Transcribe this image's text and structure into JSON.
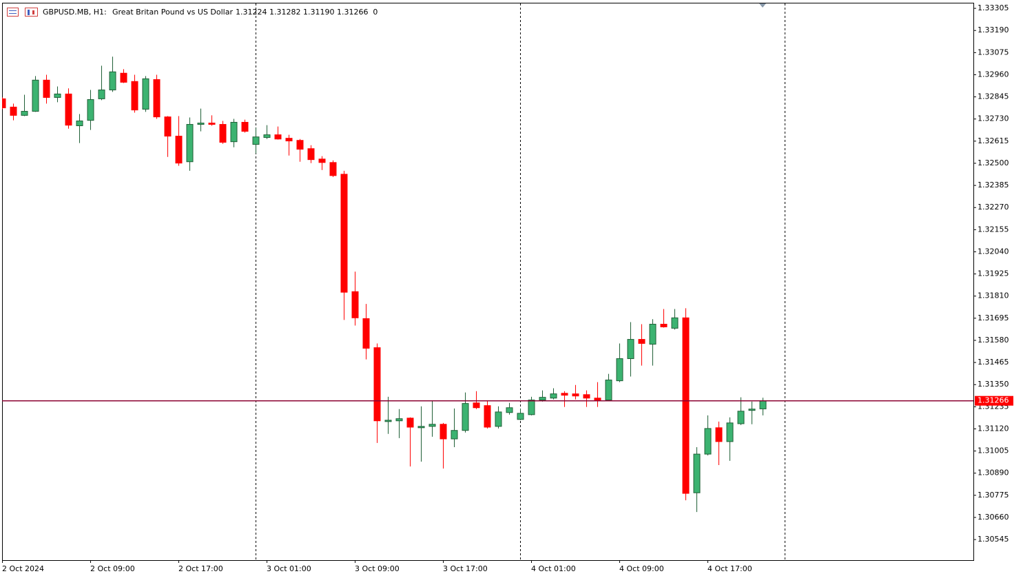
{
  "chart_data": {
    "type": "candlestick",
    "header": {
      "symbol": "GBPUSD.MB, H1:",
      "description": "Great Britan Pound vs US Dollar",
      "quote": "1.31224 1.31282 1.31190 1.31266  0"
    },
    "categories": [
      "2 Oct 2024",
      null,
      null,
      null,
      null,
      null,
      null,
      null,
      "2 Oct 09:00",
      null,
      null,
      null,
      null,
      null,
      null,
      null,
      "2 Oct 17:00",
      null,
      null,
      null,
      null,
      null,
      null,
      null,
      "3 Oct 01:00",
      null,
      null,
      null,
      null,
      null,
      null,
      null,
      "3 Oct 09:00",
      null,
      null,
      null,
      null,
      null,
      null,
      null,
      "3 Oct 17:00",
      null,
      null,
      null,
      null,
      null,
      null,
      null,
      "4 Oct 01:00",
      null,
      null,
      null,
      null,
      null,
      null,
      null,
      "4 Oct 09:00",
      null,
      null,
      null,
      null,
      null,
      null,
      null,
      "4 Oct 17:00",
      null,
      null,
      null,
      null,
      null
    ],
    "open": [
      1.32835,
      1.32792,
      1.32749,
      1.3277,
      1.32932,
      1.32842,
      1.3286,
      1.32695,
      1.32723,
      1.32835,
      1.32881,
      1.32968,
      1.32925,
      1.32781,
      1.32935,
      1.32741,
      1.32641,
      1.32508,
      1.32702,
      1.32709,
      1.32702,
      1.32612,
      1.32713,
      1.32598,
      1.32634,
      1.32648,
      1.3263,
      1.32619,
      1.32576,
      1.32522,
      1.32504,
      1.32443,
      1.31833,
      1.31693,
      1.31542,
      1.31158,
      1.31162,
      1.31176,
      1.31126,
      1.31133,
      1.31144,
      1.31068,
      1.31112,
      1.31255,
      1.31241,
      1.31133,
      1.31205,
      1.31169,
      1.31194,
      1.3127,
      1.3128,
      1.31305,
      1.31302,
      1.31298,
      1.3128,
      1.3127,
      1.3137,
      1.31485,
      1.31585,
      1.3156,
      1.31664,
      1.31643,
      1.31697,
      1.30788,
      1.30989,
      1.31126,
      1.31054,
      1.31147,
      1.31216,
      1.31224
    ],
    "high": [
      1.32842,
      1.3281,
      1.32856,
      1.32953,
      1.3296,
      1.32899,
      1.32889,
      1.32756,
      1.32881,
      1.33007,
      1.33054,
      1.32989,
      1.3296,
      1.32953,
      1.3296,
      1.32745,
      1.32745,
      1.32738,
      1.32784,
      1.32749,
      1.3272,
      1.32731,
      1.32727,
      1.32684,
      1.32698,
      1.32691,
      1.32648,
      1.32626,
      1.32594,
      1.32537,
      1.32515,
      1.32461,
      1.31937,
      1.31769,
      1.31564,
      1.31287,
      1.31223,
      1.3118,
      1.31237,
      1.31266,
      1.31151,
      1.31226,
      1.31309,
      1.31316,
      1.31266,
      1.31237,
      1.31255,
      1.31226,
      1.31287,
      1.3132,
      1.31331,
      1.31316,
      1.31348,
      1.3132,
      1.31363,
      1.31406,
      1.31564,
      1.31675,
      1.31664,
      1.3169,
      1.31743,
      1.31743,
      1.31747,
      1.31025,
      1.3119,
      1.31158,
      1.3118,
      1.31284,
      1.31262,
      1.31282
    ],
    "low": [
      1.32781,
      1.32723,
      1.32745,
      1.32767,
      1.3281,
      1.32817,
      1.3268,
      1.32605,
      1.32673,
      1.32828,
      1.32871,
      1.32917,
      1.32763,
      1.32767,
      1.32731,
      1.32533,
      1.32487,
      1.32461,
      1.32666,
      1.32695,
      1.32601,
      1.32583,
      1.32659,
      1.32551,
      1.32626,
      1.32623,
      1.3254,
      1.32508,
      1.32501,
      1.32465,
      1.32429,
      1.31686,
      1.31657,
      1.31481,
      1.31047,
      1.31094,
      1.31072,
      1.30925,
      1.3095,
      1.31079,
      1.30914,
      1.31025,
      1.31101,
      1.31223,
      1.31122,
      1.31122,
      1.31194,
      1.31165,
      1.3119,
      1.31262,
      1.31273,
      1.31234,
      1.31273,
      1.31234,
      1.31234,
      1.31266,
      1.31363,
      1.31392,
      1.31449,
      1.31449,
      1.31646,
      1.31636,
      1.30749,
      1.30688,
      1.30982,
      1.30932,
      1.30954,
      1.3114,
      1.31144,
      1.3119
    ],
    "close": [
      1.32788,
      1.32749,
      1.3277,
      1.32932,
      1.32842,
      1.3286,
      1.32698,
      1.3272,
      1.32831,
      1.32881,
      1.32975,
      1.32921,
      1.32777,
      1.32939,
      1.32741,
      1.32641,
      1.32501,
      1.32702,
      1.32709,
      1.32702,
      1.32609,
      1.32713,
      1.32666,
      1.32637,
      1.32648,
      1.32626,
      1.32616,
      1.32573,
      1.32519,
      1.32504,
      1.32436,
      1.3183,
      1.31697,
      1.31539,
      1.31162,
      1.31165,
      1.31173,
      1.31129,
      1.31133,
      1.31144,
      1.31068,
      1.31112,
      1.31252,
      1.3123,
      1.31129,
      1.31208,
      1.3123,
      1.31201,
      1.3127,
      1.31284,
      1.31302,
      1.31295,
      1.31291,
      1.3128,
      1.3127,
      1.31374,
      1.31485,
      1.31585,
      1.31564,
      1.31664,
      1.3165,
      1.31697,
      1.30785,
      1.30989,
      1.31122,
      1.31054,
      1.31151,
      1.31212,
      1.31223,
      1.31266
    ],
    "up_color": "#3cb371",
    "down_color": "#ff0000",
    "current_price": 1.31266,
    "current_price_color": "#ff0000",
    "ylim": [
      1.30438,
      1.33334
    ],
    "yticks": [
      1.33305,
      {
        "value": 1.3319,
        "label": "1.33190"
      },
      1.33075,
      {
        "value": 1.3296,
        "label": "1.32960"
      },
      1.32845,
      {
        "value": 1.3273,
        "label": "1.32730"
      },
      1.32615,
      {
        "value": 1.325,
        "label": "1.32500"
      },
      1.32385,
      {
        "value": 1.3227,
        "label": "1.32270"
      },
      1.32155,
      {
        "value": 1.3204,
        "label": "1.32040"
      },
      1.31925,
      {
        "value": 1.3181,
        "label": "1.31810"
      },
      1.31695,
      {
        "value": 1.3158,
        "label": "1.31580"
      },
      1.31465,
      {
        "value": 1.3135,
        "label": "1.31350"
      },
      1.31235,
      {
        "value": 1.3112,
        "label": "1.31120"
      },
      1.31005,
      {
        "value": 1.3089,
        "label": "1.30890"
      },
      1.30775,
      {
        "value": 1.3066,
        "label": "1.30660"
      },
      1.30545
    ]
  }
}
